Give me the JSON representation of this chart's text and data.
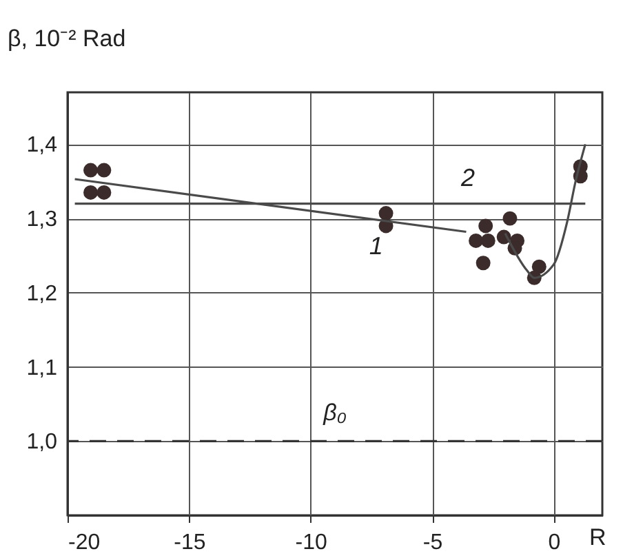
{
  "chart_data": {
    "type": "scatter",
    "xlabel": "R",
    "ylabel": "β, 10⁻² Rad",
    "xlim": [
      -20,
      2
    ],
    "ylim": [
      0.9,
      1.47
    ],
    "xticks": [
      -20,
      -15,
      -10,
      -5,
      0
    ],
    "yticks": [
      {
        "value": 1.0,
        "label": "1,0"
      },
      {
        "value": 1.1,
        "label": "1,1"
      },
      {
        "value": 1.2,
        "label": "1,2"
      },
      {
        "value": 1.3,
        "label": "1,3"
      },
      {
        "value": 1.4,
        "label": "1,4"
      }
    ],
    "grid": true,
    "series": [
      {
        "marker": "circle",
        "color": "#3b2b2b",
        "x": [
          -19.05,
          -18.5,
          -19.05,
          -18.5,
          -6.9,
          -6.9,
          -2.8,
          -3.2,
          -2.7,
          -2.9,
          -1.8,
          -2.05,
          -1.5,
          -1.6,
          -0.6,
          -0.8,
          1.1,
          1.1
        ],
        "values": [
          1.365,
          1.365,
          1.335,
          1.335,
          1.307,
          1.29,
          1.29,
          1.27,
          1.27,
          1.24,
          1.3,
          1.275,
          1.27,
          1.26,
          1.235,
          1.22,
          1.37,
          1.357
        ]
      },
      {
        "type": "line",
        "name": "1",
        "line_style": "solid",
        "color": "#4a4a4a",
        "x": [
          -19.7,
          -3.6
        ],
        "values": [
          1.353,
          1.282
        ]
      },
      {
        "type": "line",
        "name": "2",
        "line_style": "solid",
        "color": "#4a4a4a",
        "x": [
          -19.7,
          1.3
        ],
        "values": [
          1.32,
          1.32
        ]
      },
      {
        "type": "line",
        "line_style": "solid",
        "color": "#4a4a4a",
        "x": [
          -2.0,
          -1.1,
          -0.8,
          0,
          0.55,
          0.9,
          1.3
        ],
        "values": [
          1.28,
          1.23,
          1.22,
          1.238,
          1.295,
          1.35,
          1.4
        ]
      }
    ],
    "ref_lines": [
      {
        "axis": "y",
        "value": 1.0,
        "label": "β₀",
        "line_style": "dashed",
        "color": "#333333"
      }
    ]
  }
}
